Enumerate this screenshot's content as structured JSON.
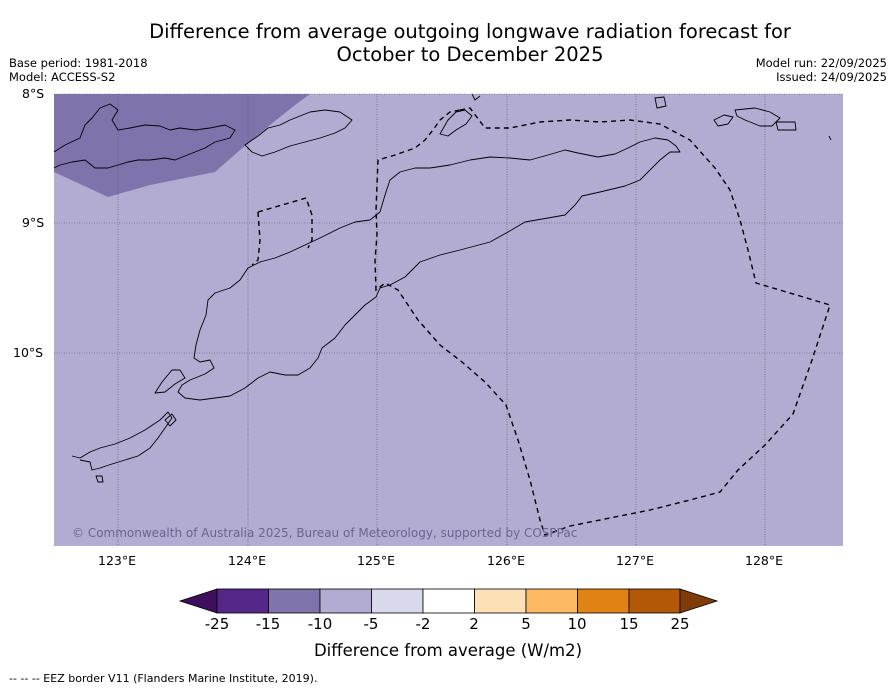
{
  "title_line1": "Difference from average outgoing longwave radiation forecast for",
  "title_line2": "October to December 2025",
  "meta_left": {
    "base_period": "Base period: 1981-2018",
    "model": "Model: ACCESS-S2"
  },
  "meta_right": {
    "model_run": "Model run: 22/09/2025",
    "issued": "Issued: 24/09/2025"
  },
  "map": {
    "lat_labels": [
      "8°S",
      "9°S",
      "10°S"
    ],
    "lon_labels": [
      "123°E",
      "124°E",
      "125°E",
      "126°E",
      "127°E",
      "128°E"
    ],
    "copyright": "© Commonwealth of Australia 2025, Bureau of Meteorology, supported by COSPPac"
  },
  "colorbar": {
    "label": "Difference from average (W/m2)",
    "ticks": [
      "-25",
      "-15",
      "-10",
      "-5",
      "-2",
      "2",
      "5",
      "10",
      "15",
      "25"
    ],
    "colors": [
      "#3f0f5e",
      "#542788",
      "#8073ac",
      "#b2abd2",
      "#d8daeb",
      "#ffffff",
      "#fee0b6",
      "#fdb863",
      "#e08214",
      "#b35806",
      "#7f3b08"
    ]
  },
  "footnote": "--  --  -- EEZ border V11 (Flanders Marine Institute, 2019).",
  "colors": {
    "field_main": "#b2abd2",
    "field_dark": "#8073ac",
    "coast": "#000000"
  }
}
